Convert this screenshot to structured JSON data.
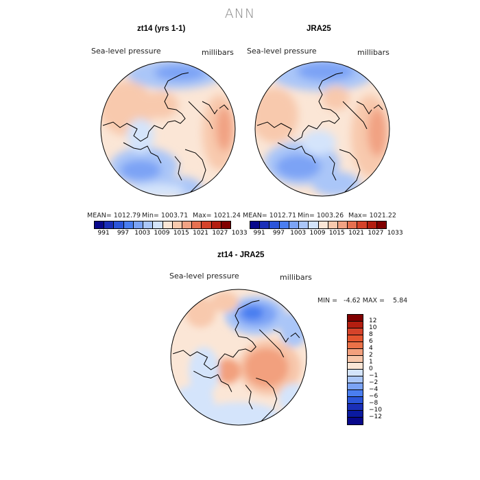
{
  "title": "ANN",
  "panels": {
    "p1": {
      "title": "zt14 (yrs 1-1)",
      "variable": "Sea-level pressure",
      "units": "millibars",
      "mean": "MEAN= 1012.79",
      "min": "Min= 1003.71",
      "max": "Max= 1021.24"
    },
    "p2": {
      "title": "JRA25",
      "variable": "Sea-level pressure",
      "units": "millibars",
      "mean": "MEAN= 1012.71",
      "min": "Min= 1003.26",
      "max": "Max= 1021.22"
    },
    "p3": {
      "title": "zt14 - JRA25",
      "variable": "Sea-level pressure",
      "units": "millibars",
      "minmax": "MIN =   -4.62 MAX =    5.84"
    }
  },
  "colorbar_top": {
    "ticks": [
      "991",
      "997",
      "1003",
      "1009",
      "1015",
      "1021",
      "1027",
      "1033"
    ],
    "colors": [
      "#08088a",
      "#1a2fb8",
      "#2b55d9",
      "#4a7ef0",
      "#7ba3f5",
      "#aac6f8",
      "#d4e4fb",
      "#fbe6d6",
      "#f8c9ad",
      "#f1a283",
      "#e67050",
      "#d5432a",
      "#b31e10",
      "#800000"
    ]
  },
  "colorbar_diff": {
    "ticks": [
      "12",
      "10",
      "8",
      "6",
      "4",
      "2",
      "1",
      "0",
      "-1",
      "-2",
      "-4",
      "-6",
      "-8",
      "-10",
      "-12"
    ],
    "colors": [
      "#800000",
      "#b31e10",
      "#d5432a",
      "#e4552f",
      "#ea7148",
      "#f2a07e",
      "#f7c6aa",
      "#fbe6d6",
      "#d4e4fb",
      "#aac6f8",
      "#7ba3f5",
      "#4a7ef0",
      "#2b55d9",
      "#1a2fb8",
      "#0a1aa0",
      "#08088a"
    ]
  }
}
